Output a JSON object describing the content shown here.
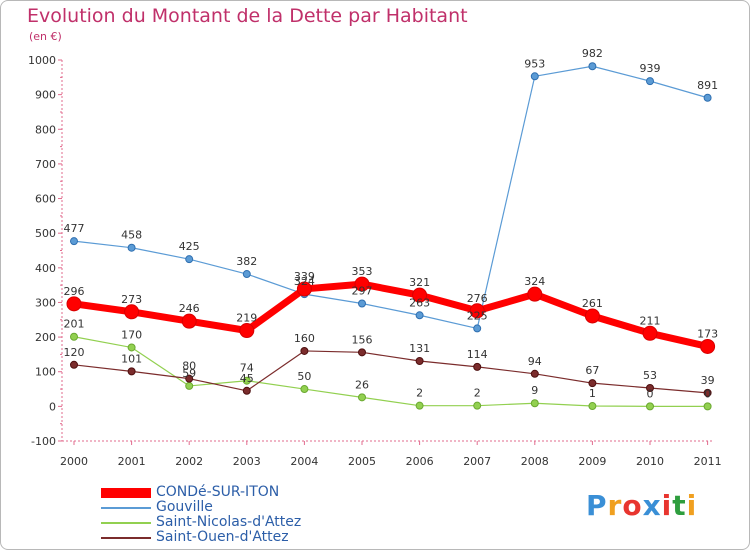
{
  "chart_data": {
    "type": "line",
    "title": "Evolution du Montant de la Dette par Habitant",
    "subtitle": "(en €)",
    "x": [
      "2000",
      "2001",
      "2002",
      "2003",
      "2004",
      "2005",
      "2006",
      "2007",
      "2008",
      "2009",
      "2010",
      "2011"
    ],
    "ylim": [
      -100,
      1000
    ],
    "yticks": [
      -100,
      0,
      100,
      200,
      300,
      400,
      500,
      600,
      700,
      800,
      900,
      1000
    ],
    "grid": false,
    "legend_position": "bottom-left",
    "series": [
      {
        "name": "CONDé-SUR-ITON",
        "color": "#ff0000",
        "values": [
          296,
          273,
          246,
          219,
          339,
          353,
          321,
          276,
          324,
          261,
          211,
          173
        ]
      },
      {
        "name": "Gouville",
        "color": "#5b9bd5",
        "values": [
          477,
          458,
          425,
          382,
          324,
          297,
          263,
          225,
          953,
          982,
          939,
          891
        ]
      },
      {
        "name": "Saint-Nicolas-d'Attez",
        "color": "#92d050",
        "values": [
          201,
          170,
          59,
          74,
          50,
          26,
          2,
          2,
          9,
          1,
          0,
          0
        ]
      },
      {
        "name": "Saint-Ouen-d'Attez",
        "color": "#7b2c2c",
        "values": [
          120,
          101,
          80,
          45,
          160,
          156,
          131,
          114,
          94,
          67,
          53,
          39
        ]
      }
    ]
  },
  "logo": {
    "text": "Proxiti",
    "letters": [
      "P",
      "r",
      "o",
      "x",
      "i",
      "t",
      "i"
    ]
  }
}
